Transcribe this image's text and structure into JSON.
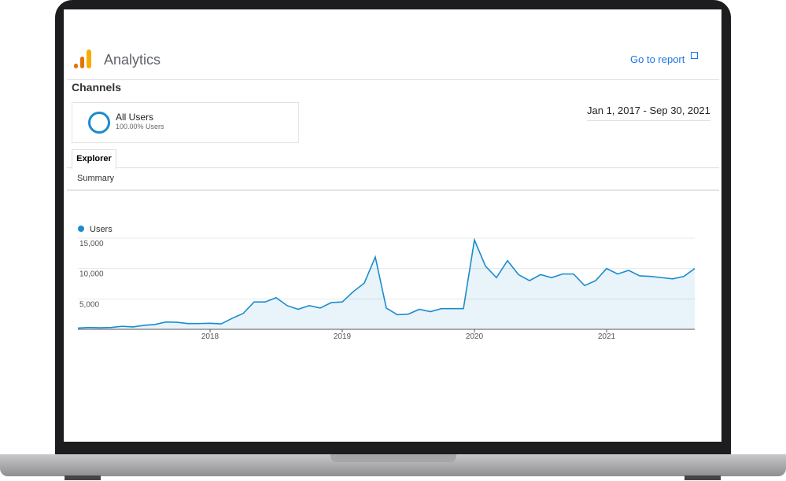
{
  "header": {
    "title": "Analytics",
    "link": "Go to report"
  },
  "section": "Channels",
  "segment": {
    "name": "All Users",
    "share": "100.00% Users"
  },
  "date_range": "Jan 1, 2017 - Sep 30, 2021",
  "tabs": [
    "Explorer"
  ],
  "subtab": "Summary",
  "chart_data": {
    "type": "line",
    "categories": [
      null,
      null,
      null,
      null,
      null,
      null,
      null,
      null,
      null,
      null,
      null,
      null,
      "2018",
      null,
      null,
      null,
      null,
      null,
      null,
      null,
      null,
      null,
      null,
      null,
      "2019",
      null,
      null,
      null,
      null,
      null,
      null,
      null,
      null,
      null,
      null,
      null,
      "2020",
      null,
      null,
      null,
      null,
      null,
      null,
      null,
      null,
      null,
      null,
      null,
      "2021",
      null,
      null,
      null,
      null,
      null,
      null,
      null,
      null
    ],
    "series": [
      {
        "name": "Users",
        "color": "#1a8ccc",
        "values": [
          200,
          300,
          250,
          300,
          500,
          400,
          650,
          800,
          1200,
          1150,
          950,
          950,
          1000,
          900,
          1800,
          2600,
          4500,
          4500,
          5200,
          3900,
          3300,
          3900,
          3500,
          4400,
          4500,
          6200,
          7600,
          11900,
          3500,
          2400,
          2500,
          3300,
          2900,
          3400,
          3400,
          3400,
          14700,
          10400,
          8500,
          11300,
          9000,
          8000,
          9000,
          8500,
          9100,
          9100,
          7200,
          8000,
          10000,
          9100,
          9700,
          8800,
          8700,
          8500,
          8300,
          8700,
          10000
        ]
      }
    ],
    "ylim": [
      0,
      15000
    ],
    "yticks": [
      {
        "value": 5000,
        "label": "5,000"
      },
      {
        "value": 10000,
        "label": "10,000"
      },
      {
        "value": 15000,
        "label": "15,000"
      }
    ],
    "grid": true
  }
}
